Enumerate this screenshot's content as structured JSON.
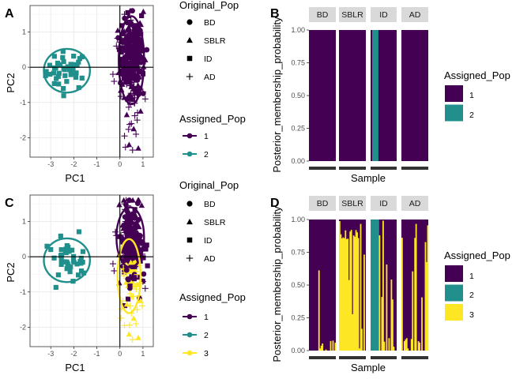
{
  "panel_letters": [
    "A",
    "B",
    "C",
    "D"
  ],
  "colors": {
    "k1": "#440154",
    "k2": "#21908C",
    "k3": "#FDE725",
    "grid_major": "#ebebeb",
    "grid_minor": "#f5f5f5",
    "strip_fill": "#d9d9d9",
    "panel_border": "#333333"
  },
  "pca_legend": {
    "shape_title": "Original_Pop",
    "shapes": [
      {
        "label": "BD",
        "shape": "circle"
      },
      {
        "label": "SBLR",
        "shape": "triangle"
      },
      {
        "label": "ID",
        "shape": "square"
      },
      {
        "label": "AD",
        "shape": "plus"
      }
    ],
    "color_title": "Assigned_Pop",
    "colors_k2": [
      {
        "label": "1",
        "color": "#440154"
      },
      {
        "label": "2",
        "color": "#21908C"
      }
    ],
    "colors_k3": [
      {
        "label": "1",
        "color": "#440154"
      },
      {
        "label": "2",
        "color": "#21908C"
      },
      {
        "label": "3",
        "color": "#FDE725"
      }
    ]
  },
  "bar_legend": {
    "title": "Assigned_Pop",
    "k2": [
      {
        "label": "1",
        "color": "#440154"
      },
      {
        "label": "2",
        "color": "#21908C"
      }
    ],
    "k3": [
      {
        "label": "1",
        "color": "#440154"
      },
      {
        "label": "2",
        "color": "#21908C"
      },
      {
        "label": "3",
        "color": "#FDE725"
      }
    ]
  },
  "chart_data": [
    {
      "panel": "A",
      "type": "scatter",
      "title": "",
      "xlabel": "PC1",
      "ylabel": "PC2",
      "xlim": [
        -3.9,
        1.45
      ],
      "ylim": [
        -2.55,
        1.75
      ],
      "xticks": [
        -3,
        -2,
        -1,
        0,
        1
      ],
      "yticks": [
        -2,
        -1,
        0,
        1
      ],
      "reference_lines": {
        "x": 0,
        "y": 0
      },
      "grid": true,
      "legend": "right",
      "clusters": [
        {
          "assigned_pop": "2",
          "color": "#21908C",
          "populations": [
            "ID"
          ],
          "center": [
            -2.3,
            -0.1
          ],
          "ellipse_radii": [
            1.0,
            0.62
          ],
          "n_points": 42
        },
        {
          "assigned_pop": "1",
          "color": "#440154",
          "populations": [
            "BD",
            "SBLR",
            "ID",
            "AD"
          ],
          "center": [
            0.5,
            0.2
          ],
          "ellipse_radii": [
            0.55,
            1.25
          ],
          "n_points": 260,
          "x_range": [
            -0.3,
            1.2
          ],
          "y_range": [
            -2.35,
            1.6
          ]
        }
      ]
    },
    {
      "panel": "B",
      "type": "bar",
      "stacked": true,
      "xlabel": "Sample",
      "ylabel": "Posterior_membership_probability",
      "ylim": [
        0,
        1
      ],
      "yticks": [
        "0.00",
        "0.25",
        "0.50",
        "0.75",
        "1.00"
      ],
      "facets": [
        "BD",
        "SBLR",
        "ID",
        "AD"
      ],
      "legend": "right",
      "series_by_facet": [
        {
          "facet": "BD",
          "segments": [
            {
              "pop": "1",
              "share": 1.0
            }
          ]
        },
        {
          "facet": "SBLR",
          "segments": [
            {
              "pop": "1",
              "share": 1.0
            }
          ]
        },
        {
          "facet": "ID",
          "segments": [
            {
              "pop": "1",
              "from": 0.0,
              "to": 0.06
            },
            {
              "pop": "2",
              "from": 0.06,
              "to": 0.3
            },
            {
              "pop": "1",
              "from": 0.3,
              "to": 1.0
            }
          ]
        },
        {
          "facet": "AD",
          "segments": [
            {
              "pop": "1",
              "share": 1.0
            }
          ]
        }
      ]
    },
    {
      "panel": "C",
      "type": "scatter",
      "title": "",
      "xlabel": "PC1",
      "ylabel": "PC2",
      "xlim": [
        -3.9,
        1.45
      ],
      "ylim": [
        -2.55,
        1.75
      ],
      "xticks": [
        -3,
        -2,
        -1,
        0,
        1
      ],
      "yticks": [
        -2,
        -1,
        0,
        1
      ],
      "reference_lines": {
        "x": 0,
        "y": 0
      },
      "grid": true,
      "legend": "right",
      "clusters": [
        {
          "assigned_pop": "2",
          "color": "#21908C",
          "populations": [
            "ID"
          ],
          "center": [
            -2.3,
            -0.1
          ],
          "ellipse_radii": [
            1.0,
            0.62
          ],
          "n_points": 42
        },
        {
          "assigned_pop": "1",
          "color": "#440154",
          "populations": [
            "BD",
            "SBLR",
            "ID",
            "AD"
          ],
          "center": [
            0.45,
            0.55
          ],
          "ellipse_radii": [
            0.6,
            0.85
          ],
          "n_points": 200
        },
        {
          "assigned_pop": "3",
          "color": "#FDE725",
          "populations": [
            "SBLR",
            "AD"
          ],
          "center": [
            0.4,
            -0.55
          ],
          "ellipse_radii": [
            0.5,
            1.05
          ],
          "n_points": 70
        }
      ]
    },
    {
      "panel": "D",
      "type": "bar",
      "stacked": true,
      "xlabel": "Sample",
      "ylabel": "Posterior_membership_probability",
      "ylim": [
        0,
        1
      ],
      "yticks": [
        "0.00",
        "0.25",
        "0.50",
        "0.75",
        "1.00"
      ],
      "facets": [
        "BD",
        "SBLR",
        "ID",
        "AD"
      ],
      "legend": "right",
      "series_by_facet": [
        {
          "facet": "BD",
          "dominant_pop": "1",
          "minor_pop": "3",
          "pattern": "mostly pop 1 with scattered thin pop 3 bars"
        },
        {
          "facet": "SBLR",
          "dominant_pop": "3",
          "minor_pop": "1",
          "pattern": "mostly pop 3 with a block of pop 1 bars on the right"
        },
        {
          "facet": "ID",
          "dominant_pop": "1",
          "minor_pop": "3",
          "pattern": "pop 2 block on left, mixed pop 1 and pop 3 bars"
        },
        {
          "facet": "AD",
          "dominant_pop": "1",
          "minor_pop": "3",
          "pattern": "mostly pop 1 with scattered pop 3 bars"
        }
      ]
    }
  ]
}
